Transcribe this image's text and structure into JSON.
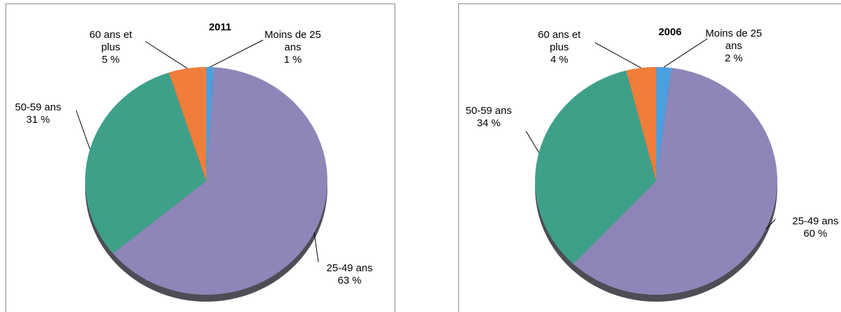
{
  "chart_data": [
    {
      "type": "pie",
      "title": "2011",
      "categories": [
        "Moins de 25 ans",
        "25-49 ans",
        "50-59 ans",
        "60 ans et plus"
      ],
      "values": [
        1,
        63,
        31,
        5
      ],
      "value_labels": [
        "1 %",
        "63 %",
        "31 %",
        "5 %"
      ],
      "colors": [
        "#4a9fe0",
        "#8e86b8",
        "#3fa08a",
        "#f07d3a"
      ]
    },
    {
      "type": "pie",
      "title": "2006",
      "categories": [
        "Moins de 25 ans",
        "25-49 ans",
        "50-59 ans",
        "60 ans et plus"
      ],
      "values": [
        2,
        60,
        34,
        4
      ],
      "value_labels": [
        "2 %",
        "60 %",
        "34 %",
        "4 %"
      ],
      "colors": [
        "#4a9fe0",
        "#8e86b8",
        "#3fa08a",
        "#f07d3a"
      ]
    }
  ]
}
